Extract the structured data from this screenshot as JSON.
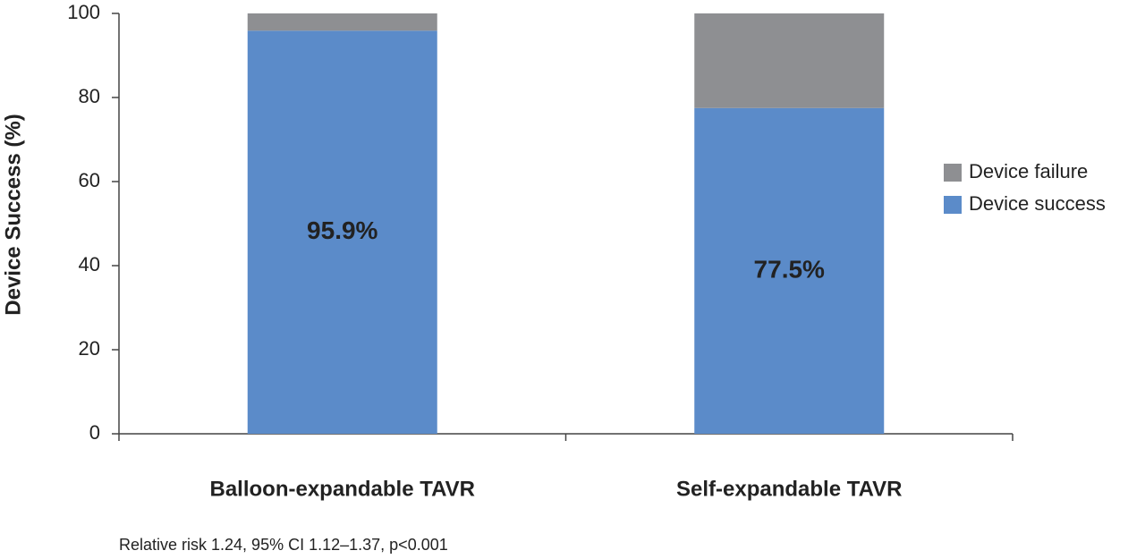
{
  "chart_data": {
    "type": "stacked_bar",
    "y_label": "Device Success (%)",
    "categories": [
      "Balloon-expandable TAVR",
      "Self-expandable TAVR"
    ],
    "series": [
      {
        "name": "Device success",
        "color": "#5b8bc9",
        "values": [
          95.9,
          77.5
        ],
        "value_labels": [
          "95.9%",
          "77.5%"
        ]
      },
      {
        "name": "Device failure",
        "color": "#8e8f92",
        "values": [
          4.1,
          22.5
        ]
      }
    ],
    "ylim": [
      0,
      100
    ],
    "yticks": [
      0,
      20,
      40,
      60,
      80,
      100
    ],
    "legend": "right",
    "annotation": "Relative risk 1.24, 95% CI 1.12–1.37, p<0.001"
  }
}
